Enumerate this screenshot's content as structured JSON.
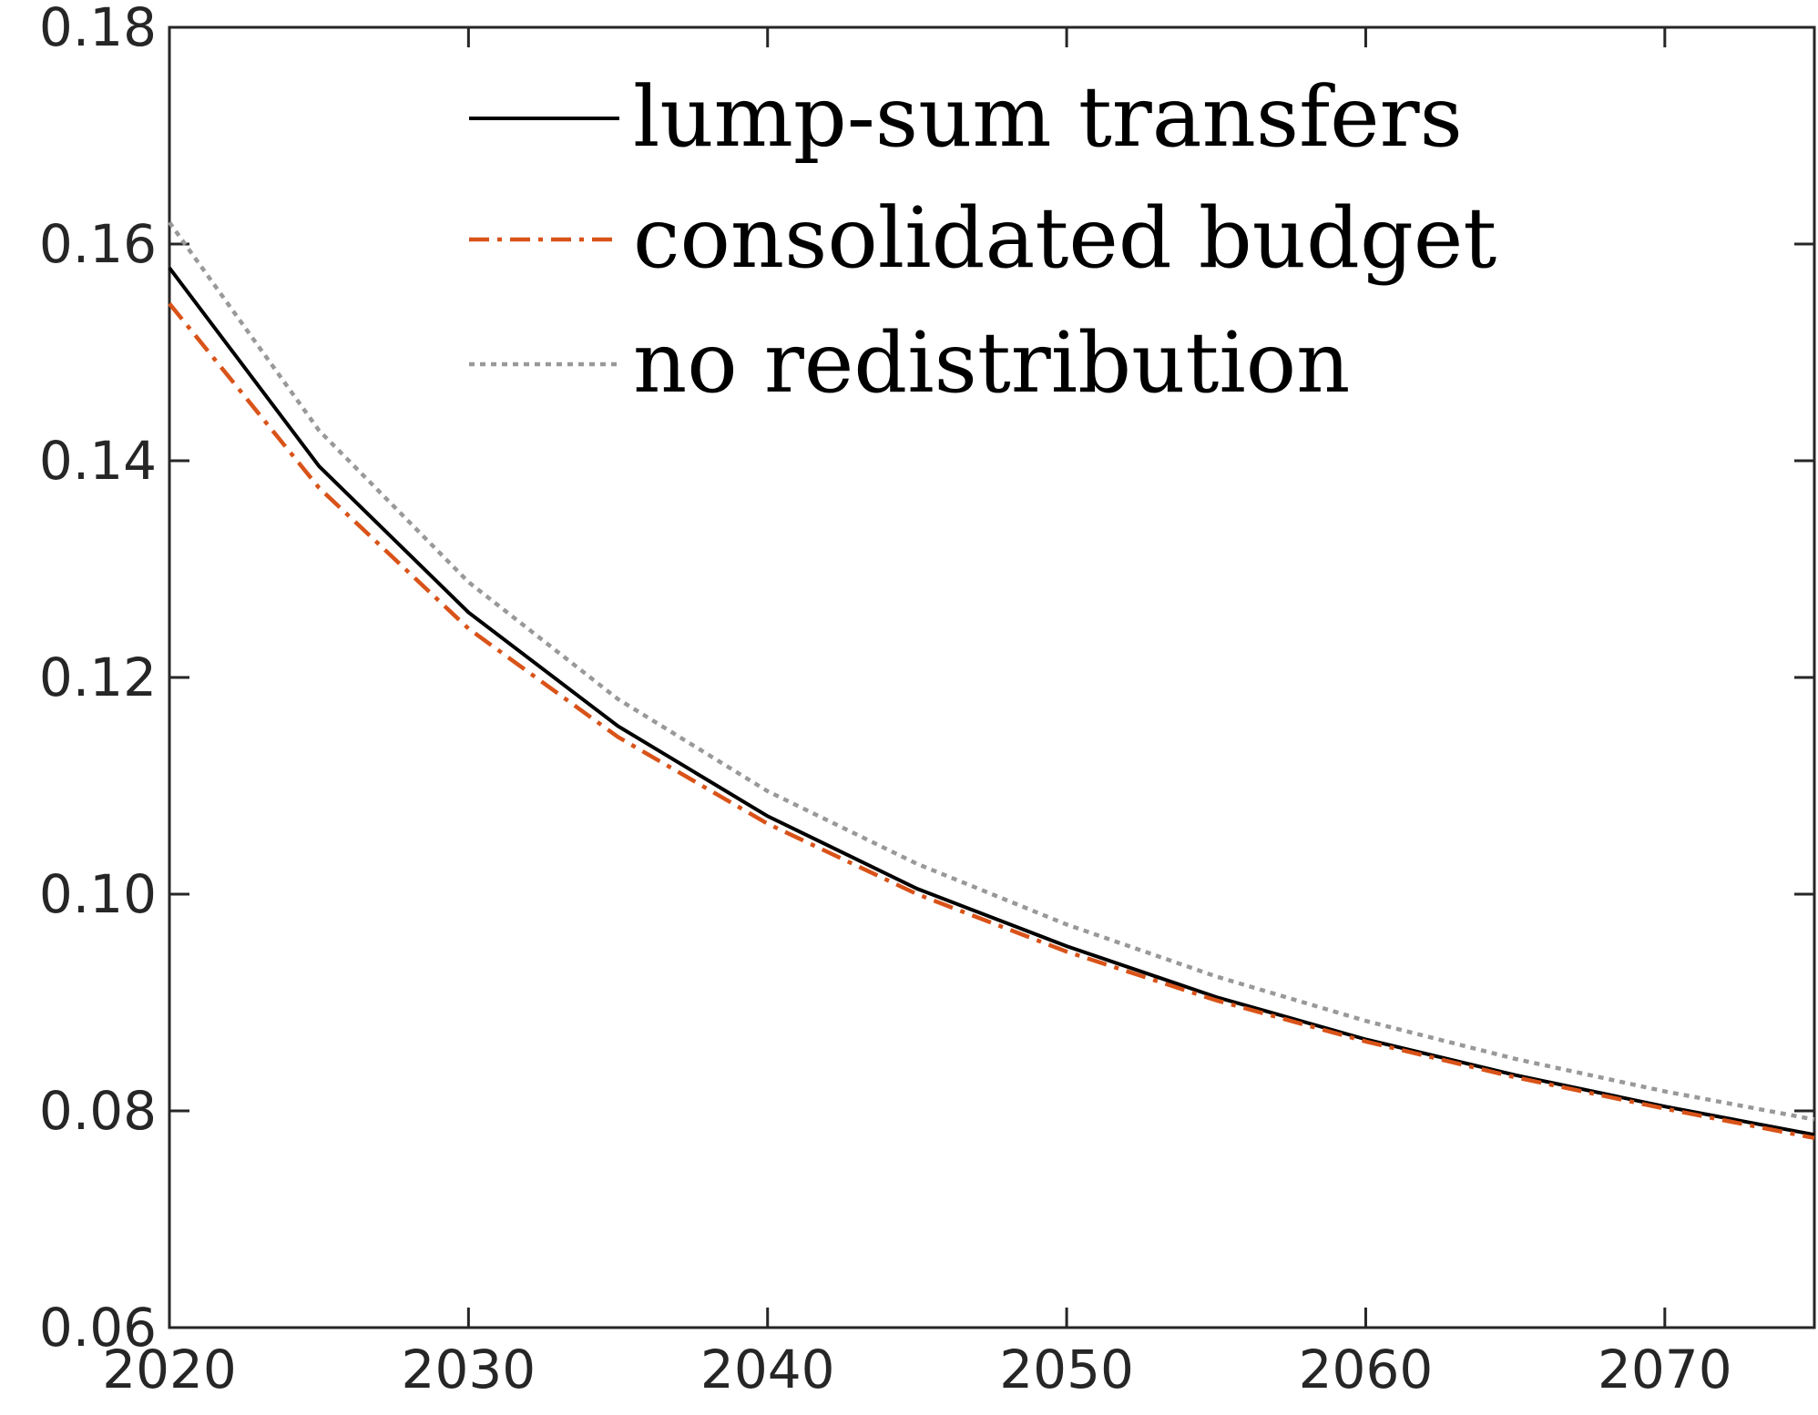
{
  "chart_data": {
    "type": "line",
    "title": "",
    "xlabel": "",
    "ylabel": "",
    "xlim": [
      2020,
      2075
    ],
    "ylim": [
      0.06,
      0.18
    ],
    "x_ticks": [
      2020,
      2030,
      2040,
      2050,
      2060,
      2070
    ],
    "x_tick_labels": [
      "2020",
      "2030",
      "2040",
      "2050",
      "2060",
      "2070"
    ],
    "y_ticks": [
      0.06,
      0.08,
      0.1,
      0.12,
      0.14,
      0.16,
      0.18
    ],
    "y_tick_labels": [
      "0.06",
      "0.08",
      "0.10",
      "0.12",
      "0.14",
      "0.16",
      "0.18"
    ],
    "grid": false,
    "legend_position": "top",
    "x": [
      2020,
      2025,
      2030,
      2035,
      2040,
      2045,
      2050,
      2055,
      2060,
      2065,
      2070,
      2075
    ],
    "series": [
      {
        "name": "lump-sum transfers",
        "color": "#000000",
        "dash": "solid",
        "values": [
          0.1578,
          0.1395,
          0.126,
          0.1155,
          0.1072,
          0.1005,
          0.0952,
          0.0905,
          0.0866,
          0.0833,
          0.0804,
          0.0778
        ]
      },
      {
        "name": "consolidated budget",
        "color": "#D95319",
        "dash": "dashdot",
        "values": [
          0.1545,
          0.1375,
          0.1245,
          0.1145,
          0.1065,
          0.1,
          0.0947,
          0.0902,
          0.0864,
          0.0831,
          0.0802,
          0.0775
        ]
      },
      {
        "name": "no redistribution",
        "color": "#999999",
        "dash": "dotted",
        "values": [
          0.162,
          0.1428,
          0.1288,
          0.118,
          0.1095,
          0.1028,
          0.0972,
          0.0924,
          0.0883,
          0.0848,
          0.0818,
          0.0792
        ]
      }
    ]
  }
}
